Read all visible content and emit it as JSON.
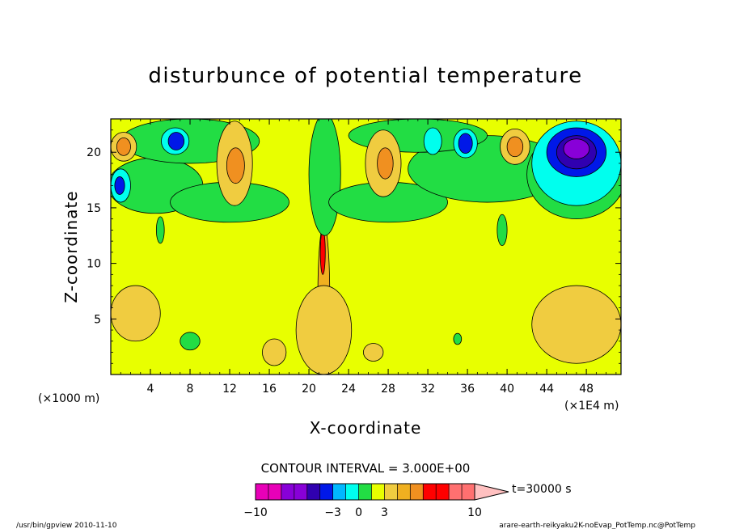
{
  "chart_data": {
    "type": "heatmap",
    "title": "disturbunce of potential temperature",
    "xlabel": "X-coordinate",
    "ylabel": "Z-coordinate",
    "x_unit_left": "(×1000 m)",
    "x_unit_right": "(×1E4 m)",
    "xlim": [
      0,
      51.5
    ],
    "ylim": [
      0,
      23
    ],
    "xticks": [
      "4",
      "8",
      "12",
      "16",
      "20",
      "24",
      "28",
      "32",
      "36",
      "40",
      "44",
      "48"
    ],
    "yticks": [
      "5",
      "10",
      "15",
      "20"
    ],
    "contour_interval": "CONTOUR INTERVAL = 3.000E+00",
    "time_label": "t=30000 s",
    "colorbar_ticks": [
      "−10",
      "−3",
      "0",
      "3",
      "10"
    ],
    "colorbar_colors": [
      "#e800b8",
      "#e800b8",
      "#8800d8",
      "#8800d8",
      "#3000b0",
      "#0018e8",
      "#00b8ff",
      "#00ffee",
      "#22dd44",
      "#e8ff00",
      "#f0cc40",
      "#f0b020",
      "#f09020",
      "#ff0000",
      "#ff0000",
      "#ff7070",
      "#ff7070"
    ],
    "field": {
      "background": "#e8ff00",
      "regions": [
        {
          "x": 21.5,
          "z": 7,
          "rx": 0.6,
          "rz": 6.5,
          "color": "#f0b020"
        },
        {
          "x": 21.4,
          "z": 11,
          "rx": 0.25,
          "rz": 2,
          "color": "#ff0000"
        },
        {
          "x": 21.5,
          "z": 4,
          "rx": 2.8,
          "rz": 4,
          "color": "#f0cc40"
        },
        {
          "x": 21.6,
          "z": 18,
          "rx": 1.6,
          "rz": 5.5,
          "color": "#22dd44"
        },
        {
          "x": 4.5,
          "z": 17,
          "rx": 4.8,
          "rz": 2.5,
          "color": "#22dd44"
        },
        {
          "x": 12,
          "z": 15.5,
          "rx": 6,
          "rz": 1.8,
          "color": "#22dd44"
        },
        {
          "x": 28,
          "z": 15.5,
          "rx": 6,
          "rz": 1.8,
          "color": "#22dd44"
        },
        {
          "x": 38,
          "z": 18.5,
          "rx": 8,
          "rz": 3,
          "color": "#22dd44"
        },
        {
          "x": 47,
          "z": 18,
          "rx": 5,
          "rz": 4,
          "color": "#22dd44"
        },
        {
          "x": 8,
          "z": 21,
          "rx": 7,
          "rz": 2,
          "color": "#22dd44"
        },
        {
          "x": 31,
          "z": 21.5,
          "rx": 7,
          "rz": 1.5,
          "color": "#22dd44"
        },
        {
          "x": 1.3,
          "z": 20.5,
          "rx": 1.3,
          "rz": 1.3,
          "color": "#f0cc40"
        },
        {
          "x": 1.3,
          "z": 20.5,
          "rx": 0.7,
          "rz": 0.8,
          "color": "#f09020"
        },
        {
          "x": 1.0,
          "z": 17,
          "rx": 1.0,
          "rz": 1.5,
          "color": "#00ffee"
        },
        {
          "x": 0.9,
          "z": 17,
          "rx": 0.5,
          "rz": 0.8,
          "color": "#0018e8"
        },
        {
          "x": 6.5,
          "z": 21,
          "rx": 1.4,
          "rz": 1.2,
          "color": "#00ffee"
        },
        {
          "x": 6.6,
          "z": 21,
          "rx": 0.8,
          "rz": 0.8,
          "color": "#0018e8"
        },
        {
          "x": 12.5,
          "z": 19,
          "rx": 1.8,
          "rz": 3.8,
          "color": "#f0cc40"
        },
        {
          "x": 12.6,
          "z": 18.8,
          "rx": 0.9,
          "rz": 1.6,
          "color": "#f09020"
        },
        {
          "x": 27.5,
          "z": 19,
          "rx": 1.8,
          "rz": 3.0,
          "color": "#f0cc40"
        },
        {
          "x": 27.7,
          "z": 19,
          "rx": 0.8,
          "rz": 1.4,
          "color": "#f09020"
        },
        {
          "x": 32.5,
          "z": 21,
          "rx": 0.9,
          "rz": 1.2,
          "color": "#00ffee"
        },
        {
          "x": 35.8,
          "z": 20.8,
          "rx": 1.2,
          "rz": 1.3,
          "color": "#00ffee"
        },
        {
          "x": 35.8,
          "z": 20.8,
          "rx": 0.7,
          "rz": 0.9,
          "color": "#0018e8"
        },
        {
          "x": 40.8,
          "z": 20.5,
          "rx": 1.5,
          "rz": 1.6,
          "color": "#f0cc40"
        },
        {
          "x": 40.8,
          "z": 20.5,
          "rx": 0.8,
          "rz": 0.9,
          "color": "#f09020"
        },
        {
          "x": 47,
          "z": 19,
          "rx": 4.5,
          "rz": 3.8,
          "color": "#00ffee"
        },
        {
          "x": 47,
          "z": 20,
          "rx": 3,
          "rz": 2.2,
          "color": "#0018e8"
        },
        {
          "x": 47,
          "z": 20,
          "rx": 2.0,
          "rz": 1.5,
          "color": "#3000b0"
        },
        {
          "x": 47,
          "z": 20.3,
          "rx": 1.3,
          "rz": 0.9,
          "color": "#8800d8"
        },
        {
          "x": 47,
          "z": 4.5,
          "rx": 4.5,
          "rz": 3.5,
          "color": "#f0cc40"
        },
        {
          "x": 2.5,
          "z": 5.5,
          "rx": 2.5,
          "rz": 2.5,
          "color": "#f0cc40"
        },
        {
          "x": 16.5,
          "z": 2.0,
          "rx": 1.2,
          "rz": 1.2,
          "color": "#f0cc40"
        },
        {
          "x": 26.5,
          "z": 2.0,
          "rx": 1.0,
          "rz": 0.8,
          "color": "#f0cc40"
        },
        {
          "x": 8,
          "z": 3,
          "rx": 1.0,
          "rz": 0.8,
          "color": "#22dd44"
        },
        {
          "x": 35,
          "z": 3.2,
          "rx": 0.4,
          "rz": 0.5,
          "color": "#22dd44"
        },
        {
          "x": 5,
          "z": 13,
          "rx": 0.4,
          "rz": 1.2,
          "color": "#22dd44"
        },
        {
          "x": 39.5,
          "z": 13,
          "rx": 0.5,
          "rz": 1.4,
          "color": "#22dd44"
        }
      ]
    }
  },
  "footer": {
    "left": "/usr/bin/gpview   2010-11-10",
    "right": "arare-earth-reikyaku2K-noEvap_PotTemp.nc@PotTemp"
  }
}
